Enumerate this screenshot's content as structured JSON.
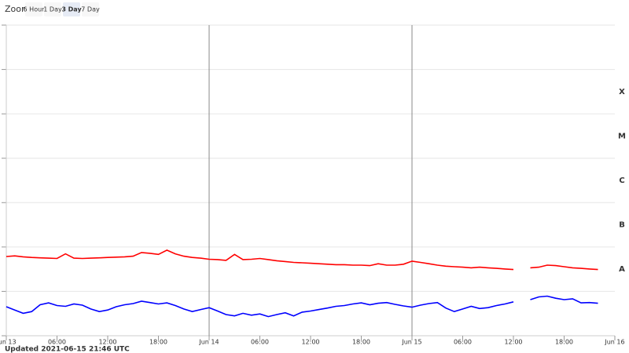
{
  "zoom": {
    "label": "Zoom",
    "buttons": [
      "6 Hour",
      "1 Day",
      "3 Day",
      "7 Day"
    ],
    "selected": 2
  },
  "chart_data": {
    "type": "line",
    "log_scale": true,
    "grid": true,
    "x": [
      0,
      1,
      2,
      3,
      4,
      5,
      6,
      7,
      8,
      9,
      10,
      11,
      12,
      13,
      14,
      15,
      16,
      17,
      18,
      19,
      20,
      21,
      22,
      23,
      24,
      25,
      26,
      27,
      28,
      29,
      30,
      31,
      32,
      33,
      34,
      35,
      36,
      37,
      38,
      39,
      40,
      41,
      42,
      43,
      44,
      45,
      46,
      47,
      48,
      49,
      50,
      51,
      52,
      53,
      54,
      55,
      56,
      57,
      58,
      59,
      60,
      61,
      62,
      63,
      64,
      65,
      66,
      67,
      68,
      69,
      70
    ],
    "series": [
      {
        "color": "#ff0000",
        "values": [
          6.1e-08,
          6.3e-08,
          6e-08,
          5.8e-08,
          5.7e-08,
          5.6e-08,
          5.5e-08,
          7e-08,
          5.6e-08,
          5.5e-08,
          5.6e-08,
          5.7e-08,
          5.8e-08,
          5.9e-08,
          6e-08,
          6.2e-08,
          7.5e-08,
          7.2e-08,
          6.8e-08,
          8.5e-08,
          7e-08,
          6.2e-08,
          5.8e-08,
          5.6e-08,
          5.3e-08,
          5.2e-08,
          5e-08,
          6.8e-08,
          5.2e-08,
          5.3e-08,
          5.5e-08,
          5.2e-08,
          4.9e-08,
          4.7e-08,
          4.5e-08,
          4.4e-08,
          4.3e-08,
          4.2e-08,
          4.1e-08,
          4e-08,
          4e-08,
          3.9e-08,
          3.9e-08,
          3.8e-08,
          4.2e-08,
          3.9e-08,
          3.9e-08,
          4.1e-08,
          4.8e-08,
          4.5e-08,
          4.2e-08,
          3.9e-08,
          3.7e-08,
          3.6e-08,
          3.5e-08,
          3.4e-08,
          3.5e-08,
          3.4e-08,
          3.3e-08,
          3.2e-08,
          3.1e-08,
          null,
          3.4e-08,
          3.5e-08,
          3.9e-08,
          3.8e-08,
          3.6e-08,
          3.4e-08,
          3.3e-08,
          3.2e-08,
          3.1e-08
        ]
      },
      {
        "color": "#0000ff",
        "values": [
          4.5e-09,
          3.8e-09,
          3.2e-09,
          3.5e-09,
          5e-09,
          5.5e-09,
          4.8e-09,
          4.6e-09,
          5.2e-09,
          4.9e-09,
          4e-09,
          3.5e-09,
          3.8e-09,
          4.5e-09,
          5e-09,
          5.3e-09,
          6e-09,
          5.6e-09,
          5.2e-09,
          5.5e-09,
          4.8e-09,
          4e-09,
          3.5e-09,
          3.9e-09,
          4.3e-09,
          3.6e-09,
          3e-09,
          2.8e-09,
          3.2e-09,
          2.9e-09,
          3.1e-09,
          2.7e-09,
          3e-09,
          3.3e-09,
          2.8e-09,
          3.4e-09,
          3.6e-09,
          3.9e-09,
          4.2e-09,
          4.6e-09,
          4.8e-09,
          5.2e-09,
          5.5e-09,
          5e-09,
          5.4e-09,
          5.6e-09,
          5.1e-09,
          4.7e-09,
          4.4e-09,
          4.9e-09,
          5.3e-09,
          5.6e-09,
          4.2e-09,
          3.5e-09,
          4e-09,
          4.6e-09,
          4.1e-09,
          4.3e-09,
          4.8e-09,
          5.2e-09,
          5.8e-09,
          null,
          6.5e-09,
          7.5e-09,
          7.8e-09,
          7e-09,
          6.5e-09,
          6.8e-09,
          5.5e-09,
          5.6e-09,
          5.4e-09
        ]
      }
    ],
    "xlim": [
      0,
      72
    ],
    "xticks": [
      {
        "value": 0,
        "label": "Jun 13"
      },
      {
        "value": 6,
        "label": "06:00"
      },
      {
        "value": 12,
        "label": "12:00"
      },
      {
        "value": 18,
        "label": "18:00"
      },
      {
        "value": 24,
        "label": "Jun 14"
      },
      {
        "value": 30,
        "label": "06:00"
      },
      {
        "value": 36,
        "label": "12:00"
      },
      {
        "value": 42,
        "label": "18:00"
      },
      {
        "value": 48,
        "label": "Jun 15"
      },
      {
        "value": 54,
        "label": "06:00"
      },
      {
        "value": 60,
        "label": "12:00"
      },
      {
        "value": 66,
        "label": "18:00"
      },
      {
        "value": 72,
        "label": "Jun 16"
      }
    ],
    "day_lines": [
      24,
      48
    ],
    "ylim": [
      1e-09,
      0.01
    ],
    "yticks": [
      1e-09,
      1e-08,
      1e-07,
      1e-06,
      1e-05,
      0.0001,
      0.001,
      0.01
    ],
    "class_labels": [
      {
        "value": 0.0001,
        "label": "X"
      },
      {
        "value": 1e-05,
        "label": "M"
      },
      {
        "value": 1e-06,
        "label": "C"
      },
      {
        "value": 1e-07,
        "label": "B"
      },
      {
        "value": 1e-08,
        "label": "A"
      }
    ]
  },
  "footer": "Updated 2021-06-15 21:46 UTC"
}
